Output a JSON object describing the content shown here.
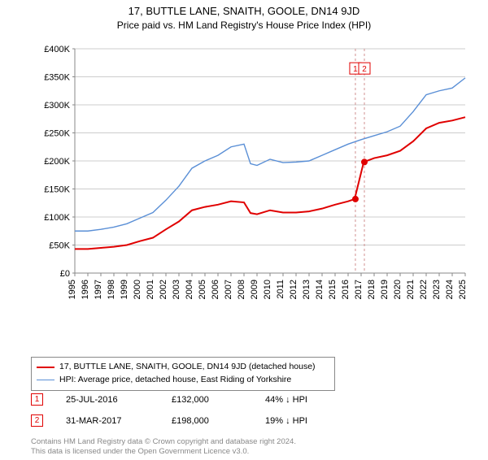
{
  "title": "17, BUTTLE LANE, SNAITH, GOOLE, DN14 9JD",
  "subtitle": "Price paid vs. HM Land Registry's House Price Index (HPI)",
  "chart": {
    "type": "line",
    "background_color": "#ffffff",
    "grid_color": "#cccccc",
    "axis_color": "#888888",
    "label_color": "#000000",
    "label_fontsize": 11,
    "x": {
      "min": 1995,
      "max": 2025,
      "ticks": [
        1995,
        1996,
        1997,
        1998,
        1999,
        2000,
        2001,
        2002,
        2003,
        2004,
        2005,
        2006,
        2007,
        2008,
        2009,
        2010,
        2011,
        2012,
        2013,
        2014,
        2015,
        2016,
        2017,
        2018,
        2019,
        2020,
        2021,
        2022,
        2023,
        2024,
        2025
      ]
    },
    "y": {
      "min": 0,
      "max": 400000,
      "ticks": [
        0,
        50000,
        100000,
        150000,
        200000,
        250000,
        300000,
        350000,
        400000
      ],
      "labels": [
        "£0",
        "£50K",
        "£100K",
        "£150K",
        "£200K",
        "£250K",
        "£300K",
        "£350K",
        "£400K"
      ]
    },
    "series": [
      {
        "name": "property",
        "label": "17, BUTTLE LANE, SNAITH, GOOLE, DN14 9JD (detached house)",
        "color": "#e00000",
        "width": 2,
        "points": [
          [
            1995,
            43000
          ],
          [
            1996,
            43000
          ],
          [
            1997,
            45000
          ],
          [
            1998,
            47000
          ],
          [
            1999,
            50000
          ],
          [
            2000,
            57000
          ],
          [
            2001,
            63000
          ],
          [
            2002,
            78000
          ],
          [
            2003,
            92000
          ],
          [
            2004,
            112000
          ],
          [
            2005,
            118000
          ],
          [
            2006,
            122000
          ],
          [
            2007,
            128000
          ],
          [
            2008,
            126000
          ],
          [
            2008.5,
            107000
          ],
          [
            2009,
            105000
          ],
          [
            2010,
            112000
          ],
          [
            2011,
            108000
          ],
          [
            2012,
            108000
          ],
          [
            2013,
            110000
          ],
          [
            2014,
            115000
          ],
          [
            2015,
            122000
          ],
          [
            2016,
            128000
          ],
          [
            2016.5,
            132000
          ],
          [
            2017.2,
            198000
          ],
          [
            2018,
            205000
          ],
          [
            2019,
            210000
          ],
          [
            2020,
            218000
          ],
          [
            2021,
            235000
          ],
          [
            2022,
            258000
          ],
          [
            2023,
            268000
          ],
          [
            2024,
            272000
          ],
          [
            2025,
            278000
          ]
        ]
      },
      {
        "name": "hpi",
        "label": "HPI: Average price, detached house, East Riding of Yorkshire",
        "color": "#5a8fd6",
        "width": 1.4,
        "points": [
          [
            1995,
            75000
          ],
          [
            1996,
            75000
          ],
          [
            1997,
            78000
          ],
          [
            1998,
            82000
          ],
          [
            1999,
            88000
          ],
          [
            2000,
            98000
          ],
          [
            2001,
            108000
          ],
          [
            2002,
            130000
          ],
          [
            2003,
            155000
          ],
          [
            2004,
            187000
          ],
          [
            2005,
            200000
          ],
          [
            2006,
            210000
          ],
          [
            2007,
            225000
          ],
          [
            2008,
            230000
          ],
          [
            2008.5,
            195000
          ],
          [
            2009,
            192000
          ],
          [
            2010,
            203000
          ],
          [
            2011,
            197000
          ],
          [
            2012,
            198000
          ],
          [
            2013,
            200000
          ],
          [
            2014,
            210000
          ],
          [
            2015,
            220000
          ],
          [
            2016,
            230000
          ],
          [
            2017,
            238000
          ],
          [
            2018,
            245000
          ],
          [
            2019,
            252000
          ],
          [
            2020,
            262000
          ],
          [
            2021,
            288000
          ],
          [
            2022,
            318000
          ],
          [
            2023,
            325000
          ],
          [
            2024,
            330000
          ],
          [
            2025,
            348000
          ]
        ]
      }
    ],
    "sale_markers": [
      {
        "n": "1",
        "x": 2016.56,
        "y": 132000,
        "color": "#e00000"
      },
      {
        "n": "2",
        "x": 2017.25,
        "y": 198000,
        "color": "#e00000"
      }
    ],
    "dot_color": "#e00000",
    "dot_radius": 4,
    "vline_color": "#d09090",
    "vline_dash": "3,3",
    "marker_label_top_y": 365000,
    "marker_label_box": {
      "w": 14,
      "h": 14,
      "fontsize": 10
    }
  },
  "legend": {
    "rows": [
      {
        "color": "#e00000",
        "width": 2,
        "text": "17, BUTTLE LANE, SNAITH, GOOLE, DN14 9JD (detached house)"
      },
      {
        "color": "#5a8fd6",
        "width": 1.4,
        "text": "HPI: Average price, detached house, East Riding of Yorkshire"
      }
    ]
  },
  "sales": [
    {
      "n": "1",
      "color": "#e00000",
      "date": "25-JUL-2016",
      "price": "£132,000",
      "pct": "44% ↓ HPI"
    },
    {
      "n": "2",
      "color": "#e00000",
      "date": "31-MAR-2017",
      "price": "£198,000",
      "pct": "19% ↓ HPI"
    }
  ],
  "footer": {
    "line1": "Contains HM Land Registry data © Crown copyright and database right 2024.",
    "line2": "This data is licensed under the Open Government Licence v3.0."
  }
}
